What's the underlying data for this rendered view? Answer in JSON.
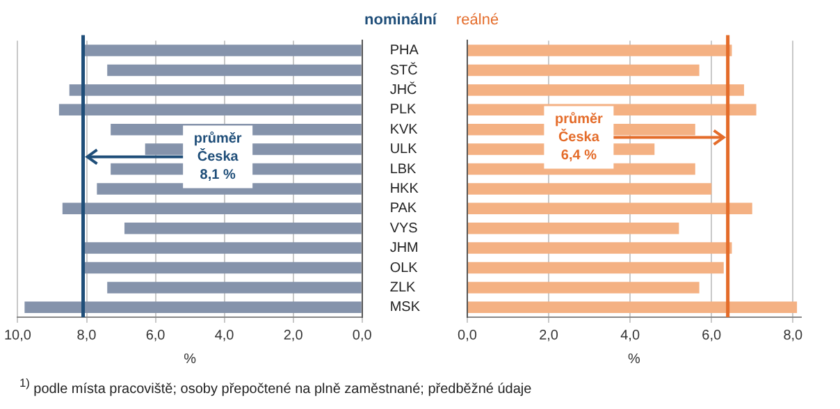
{
  "chart_data": [
    {
      "type": "bar",
      "orientation": "horizontal",
      "title": "nominální",
      "xlabel": "%",
      "categories": [
        "PHA",
        "STČ",
        "JHČ",
        "PLK",
        "KVK",
        "ULK",
        "LBK",
        "HKK",
        "PAK",
        "VYS",
        "JHM",
        "OLK",
        "ZLK",
        "MSK"
      ],
      "values": [
        8.1,
        7.4,
        8.5,
        8.8,
        7.3,
        6.3,
        7.3,
        7.7,
        8.7,
        6.9,
        8.1,
        8.1,
        7.4,
        9.8
      ],
      "color": "#8593ab",
      "xlim": [
        10,
        0
      ],
      "xticks": [
        {
          "value": 10,
          "label": "10,0"
        },
        {
          "value": 8,
          "label": "8,0"
        },
        {
          "value": 6,
          "label": "6,0"
        },
        {
          "value": 4,
          "label": "4,0"
        },
        {
          "value": 2,
          "label": "2,0"
        },
        {
          "value": 0,
          "label": "0,0"
        }
      ],
      "grid": "x",
      "ref_lines": [
        {
          "axis": "x",
          "value": 8.1,
          "label": "průměr Česka 8,1 %",
          "color": "#1f4e79"
        }
      ],
      "annotations": [
        "$^{1)}$ podle místa pracoviště; osoby přepočtené na plně zaměstnané; předběžné údaje"
      ]
    },
    {
      "type": "bar",
      "orientation": "horizontal",
      "title": "reálné",
      "xlabel": "%",
      "categories": [
        null,
        null,
        null,
        null,
        null,
        null,
        null,
        null,
        null,
        null,
        null,
        null,
        null,
        null
      ],
      "values": [
        6.5,
        5.7,
        6.8,
        7.1,
        5.6,
        4.6,
        5.6,
        6.0,
        7.0,
        5.2,
        6.5,
        6.3,
        5.7,
        8.1
      ],
      "color": "#f4b183",
      "xlim": [
        0,
        8.2
      ],
      "xticks": [
        {
          "value": 0,
          "label": "0,0"
        },
        {
          "value": 2,
          "label": "2,0"
        },
        {
          "value": 4,
          "label": "4,0"
        },
        {
          "value": 6,
          "label": "6,0"
        },
        {
          "value": 8,
          "label": "8,0"
        }
      ],
      "grid": "x",
      "tick_labels": "x",
      "ref_lines": [
        {
          "axis": "x",
          "value": 6.4,
          "label": "průměr Česka 6,4 %",
          "color": "#e46c2a"
        }
      ]
    }
  ]
}
